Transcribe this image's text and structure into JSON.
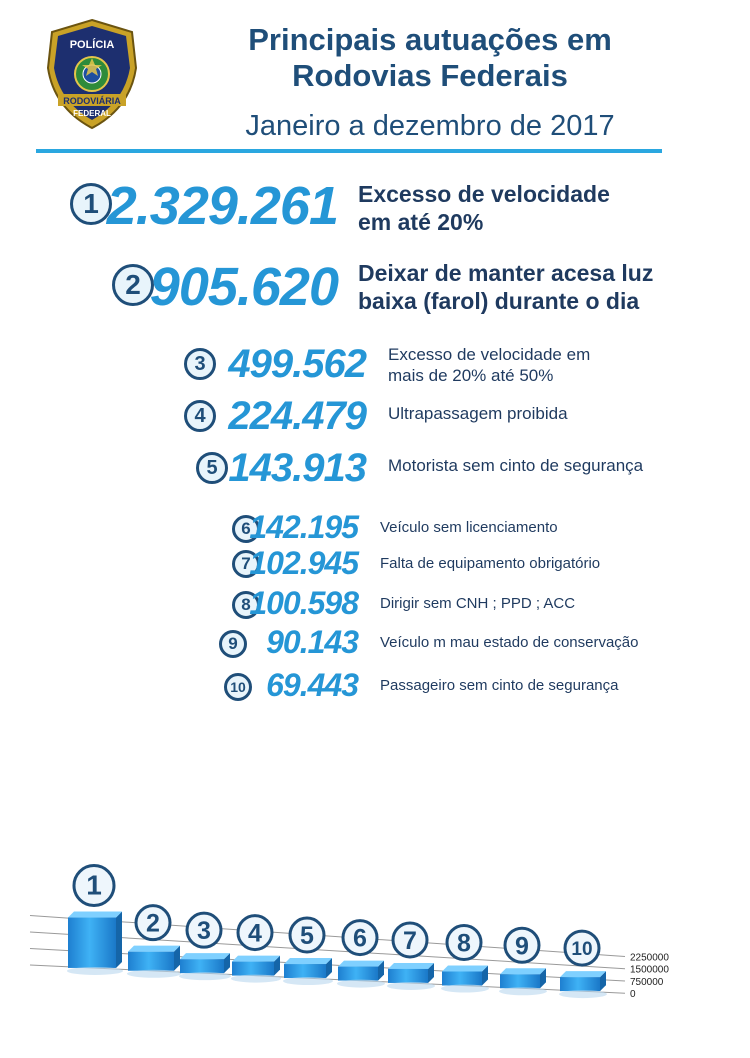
{
  "header": {
    "badge_text_top": "POLÍCIA",
    "badge_text_mid": "RODOVIÁRIA",
    "badge_text_bot": "FEDERAL",
    "title_line1": "Principais autuações em",
    "title_line2": "Rodovias Federais",
    "subtitle": "Janeiro a dezembro de 2017"
  },
  "items": [
    {
      "rank": "1",
      "value": "2.329.261",
      "label_line1": "Excesso de velocidade",
      "label_line2": "em até 20%"
    },
    {
      "rank": "2",
      "value": "905.620",
      "label_line1": "Deixar de manter acesa luz",
      "label_line2": "baixa (farol) durante o dia"
    },
    {
      "rank": "3",
      "value": "499.562",
      "label_line1": "Excesso de velocidade em",
      "label_line2": "mais de 20% até 50%"
    },
    {
      "rank": "4",
      "value": "224.479",
      "label_line1": "Ultrapassagem proibida",
      "label_line2": ""
    },
    {
      "rank": "5",
      "value": "143.913",
      "label_line1": "Motorista sem cinto de segurança",
      "label_line2": ""
    },
    {
      "rank": "6",
      "value": "142.195",
      "label_line1": "Veículo sem licenciamento",
      "label_line2": ""
    },
    {
      "rank": "7",
      "value": "102.945",
      "label_line1": "Falta de equipamento obrigatório",
      "label_line2": ""
    },
    {
      "rank": "8",
      "value": "100.598",
      "label_line1": "Dirigir sem CNH ; PPD ; ACC",
      "label_line2": ""
    },
    {
      "rank": "9",
      "value": "90.143",
      "label_line1": "Veículo m mau estado de conservação",
      "label_line2": ""
    },
    {
      "rank": "10",
      "value": "69.443",
      "label_line1": "Passageiro sem cinto de segurança",
      "label_line2": ""
    }
  ],
  "chart_data": {
    "type": "bar",
    "categories": [
      "1",
      "2",
      "3",
      "4",
      "5",
      "6",
      "7",
      "8",
      "9",
      "10"
    ],
    "values": [
      2329261,
      905620,
      499562,
      224479,
      143913,
      142195,
      102945,
      100598,
      90143,
      69443
    ],
    "yticks": [
      "0",
      "750000",
      "1500000",
      "2250000"
    ],
    "ylim": [
      0,
      2250000
    ],
    "bar_color": "#2196e8",
    "title": "",
    "xlabel": "",
    "ylabel": ""
  }
}
